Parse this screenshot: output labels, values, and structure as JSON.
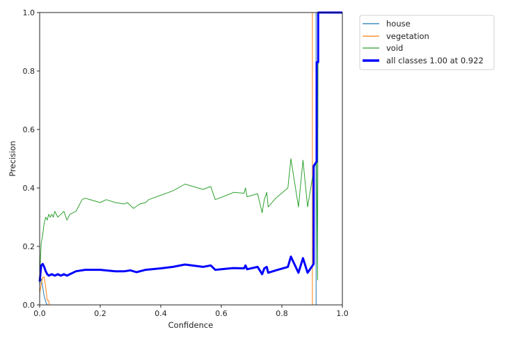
{
  "chart_data": {
    "type": "line",
    "title": "",
    "xlabel": "Confidence",
    "ylabel": "Precision",
    "xlim": [
      0,
      1
    ],
    "ylim": [
      0,
      1
    ],
    "grid": false,
    "legend_position": "outside upper right",
    "x_ticks": [
      "0.0",
      "0.2",
      "0.4",
      "0.6",
      "0.8",
      "1.0"
    ],
    "y_ticks": [
      "0.0",
      "0.2",
      "0.4",
      "0.6",
      "0.8",
      "1.0"
    ],
    "series": [
      {
        "name": "house",
        "color": "#1f77b4",
        "width": 1,
        "points": [
          [
            0.0,
            0.07
          ],
          [
            0.005,
            0.09
          ],
          [
            0.01,
            0.06
          ],
          [
            0.015,
            0.03
          ],
          [
            0.02,
            0.01
          ],
          [
            0.025,
            0.0
          ],
          [
            0.913,
            0.0
          ],
          [
            0.913,
            1.0
          ],
          [
            1.0,
            1.0
          ]
        ]
      },
      {
        "name": "vegetation",
        "color": "#ff7f0e",
        "width": 1,
        "points": [
          [
            0.0,
            0.04
          ],
          [
            0.005,
            0.07
          ],
          [
            0.01,
            0.095
          ],
          [
            0.015,
            0.095
          ],
          [
            0.02,
            0.06
          ],
          [
            0.025,
            0.015
          ],
          [
            0.03,
            0.015
          ],
          [
            0.032,
            0.0
          ],
          [
            0.901,
            0.0
          ],
          [
            0.901,
            1.0
          ],
          [
            1.0,
            1.0
          ]
        ]
      },
      {
        "name": "void",
        "color": "#2ca02c",
        "width": 1,
        "points": [
          [
            0.0,
            0.1
          ],
          [
            0.005,
            0.21
          ],
          [
            0.01,
            0.24
          ],
          [
            0.015,
            0.28
          ],
          [
            0.02,
            0.3
          ],
          [
            0.025,
            0.29
          ],
          [
            0.03,
            0.31
          ],
          [
            0.035,
            0.3
          ],
          [
            0.04,
            0.31
          ],
          [
            0.045,
            0.3
          ],
          [
            0.05,
            0.32
          ],
          [
            0.06,
            0.3
          ],
          [
            0.07,
            0.31
          ],
          [
            0.08,
            0.32
          ],
          [
            0.09,
            0.29
          ],
          [
            0.1,
            0.31
          ],
          [
            0.12,
            0.32
          ],
          [
            0.125,
            0.33
          ],
          [
            0.14,
            0.36
          ],
          [
            0.15,
            0.365
          ],
          [
            0.2,
            0.35
          ],
          [
            0.22,
            0.36
          ],
          [
            0.25,
            0.35
          ],
          [
            0.28,
            0.345
          ],
          [
            0.29,
            0.35
          ],
          [
            0.31,
            0.33
          ],
          [
            0.33,
            0.345
          ],
          [
            0.35,
            0.35
          ],
          [
            0.36,
            0.36
          ],
          [
            0.4,
            0.375
          ],
          [
            0.44,
            0.39
          ],
          [
            0.48,
            0.413
          ],
          [
            0.54,
            0.395
          ],
          [
            0.565,
            0.405
          ],
          [
            0.58,
            0.36
          ],
          [
            0.63,
            0.38
          ],
          [
            0.64,
            0.385
          ],
          [
            0.675,
            0.382
          ],
          [
            0.68,
            0.4
          ],
          [
            0.685,
            0.37
          ],
          [
            0.72,
            0.38
          ],
          [
            0.735,
            0.315
          ],
          [
            0.742,
            0.36
          ],
          [
            0.75,
            0.385
          ],
          [
            0.755,
            0.335
          ],
          [
            0.78,
            0.365
          ],
          [
            0.82,
            0.4
          ],
          [
            0.83,
            0.5
          ],
          [
            0.855,
            0.335
          ],
          [
            0.87,
            0.495
          ],
          [
            0.885,
            0.335
          ],
          [
            0.905,
            0.46
          ],
          [
            0.915,
            0.5
          ],
          [
            0.918,
            0.085
          ],
          [
            0.92,
            1.0
          ],
          [
            1.0,
            1.0
          ]
        ]
      },
      {
        "name": "all classes 1.00 at 0.922",
        "color": "#0000ff",
        "width": 3,
        "points": [
          [
            0.0,
            0.08
          ],
          [
            0.005,
            0.135
          ],
          [
            0.01,
            0.14
          ],
          [
            0.015,
            0.13
          ],
          [
            0.02,
            0.115
          ],
          [
            0.025,
            0.105
          ],
          [
            0.03,
            0.1
          ],
          [
            0.04,
            0.105
          ],
          [
            0.05,
            0.1
          ],
          [
            0.06,
            0.105
          ],
          [
            0.07,
            0.1
          ],
          [
            0.08,
            0.105
          ],
          [
            0.09,
            0.1
          ],
          [
            0.1,
            0.105
          ],
          [
            0.12,
            0.115
          ],
          [
            0.15,
            0.12
          ],
          [
            0.2,
            0.12
          ],
          [
            0.25,
            0.115
          ],
          [
            0.28,
            0.115
          ],
          [
            0.3,
            0.118
          ],
          [
            0.32,
            0.112
          ],
          [
            0.35,
            0.12
          ],
          [
            0.4,
            0.125
          ],
          [
            0.44,
            0.13
          ],
          [
            0.48,
            0.138
          ],
          [
            0.54,
            0.13
          ],
          [
            0.565,
            0.135
          ],
          [
            0.58,
            0.12
          ],
          [
            0.63,
            0.125
          ],
          [
            0.64,
            0.126
          ],
          [
            0.675,
            0.125
          ],
          [
            0.68,
            0.135
          ],
          [
            0.685,
            0.122
          ],
          [
            0.72,
            0.13
          ],
          [
            0.735,
            0.105
          ],
          [
            0.742,
            0.125
          ],
          [
            0.75,
            0.13
          ],
          [
            0.755,
            0.11
          ],
          [
            0.78,
            0.118
          ],
          [
            0.82,
            0.13
          ],
          [
            0.83,
            0.165
          ],
          [
            0.855,
            0.11
          ],
          [
            0.87,
            0.16
          ],
          [
            0.885,
            0.11
          ],
          [
            0.905,
            0.14
          ],
          [
            0.905,
            0.475
          ],
          [
            0.915,
            0.49
          ],
          [
            0.915,
            0.83
          ],
          [
            0.92,
            0.83
          ],
          [
            0.92,
            1.0
          ],
          [
            1.0,
            1.0
          ]
        ]
      }
    ]
  },
  "legend": {
    "items": [
      {
        "label": "house",
        "color": "#1f77b4"
      },
      {
        "label": "vegetation",
        "color": "#ff7f0e"
      },
      {
        "label": "void",
        "color": "#2ca02c"
      },
      {
        "label": "all classes 1.00 at 0.922",
        "color": "#0000ff"
      }
    ]
  }
}
